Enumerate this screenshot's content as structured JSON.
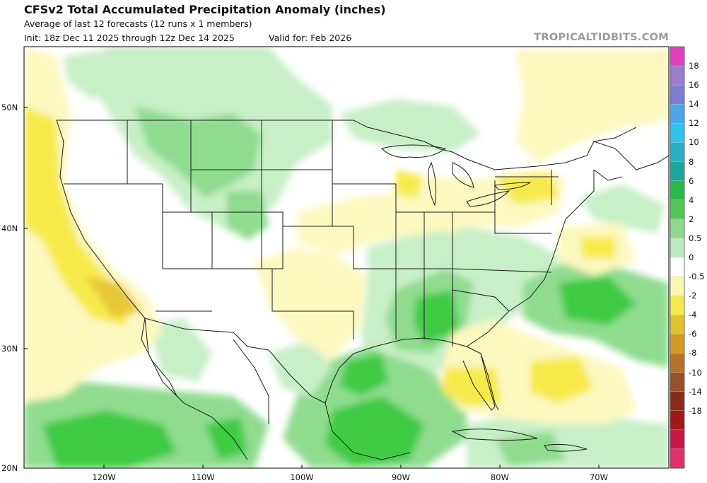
{
  "header": {
    "title": "CFSv2 Total Accumulated Precipitation Anomaly (inches)",
    "subtitle": "Average of last 12 forecasts (12 runs x 1 members)",
    "init": "Init: 18z Dec 11 2025 through 12z Dec 14 2025",
    "valid": "Valid for: Feb 2026",
    "brand": "TROPICALTIDBITS.COM"
  },
  "map": {
    "lat_labels": [
      "50N",
      "40N",
      "30N",
      "20N"
    ],
    "lon_labels": [
      "120W",
      "110W",
      "100W",
      "90W",
      "80W",
      "70W"
    ]
  },
  "colorbar": {
    "labels": [
      "18",
      "16",
      "14",
      "12",
      "10",
      "8",
      "6",
      "4",
      "2",
      "0.5",
      "0",
      "-0.5",
      "-2",
      "-4",
      "-6",
      "-8",
      "-10",
      "-14",
      "-18"
    ],
    "colors": [
      "#e040c0",
      "#9c7ec8",
      "#7a7ed0",
      "#4aa8e8",
      "#2ec3ee",
      "#26b2c2",
      "#1aa898",
      "#2ab84a",
      "#52c652",
      "#8ed98e",
      "#bfe9bf",
      "#ffffff",
      "#fbf6b0",
      "#f6e94a",
      "#e4c22e",
      "#d49a22",
      "#b8722a",
      "#9a5028",
      "#8a2a1c",
      "#a01818",
      "#c8184a",
      "#e0306e"
    ]
  },
  "legend_colors": {
    "land_bg": "#ffffff",
    "wet_light": "#c8efc8",
    "wet_mid": "#8fdc8f",
    "wet_strong": "#3fcb45",
    "dry_light": "#fcf8c0",
    "dry_mid": "#f6ea4c"
  }
}
